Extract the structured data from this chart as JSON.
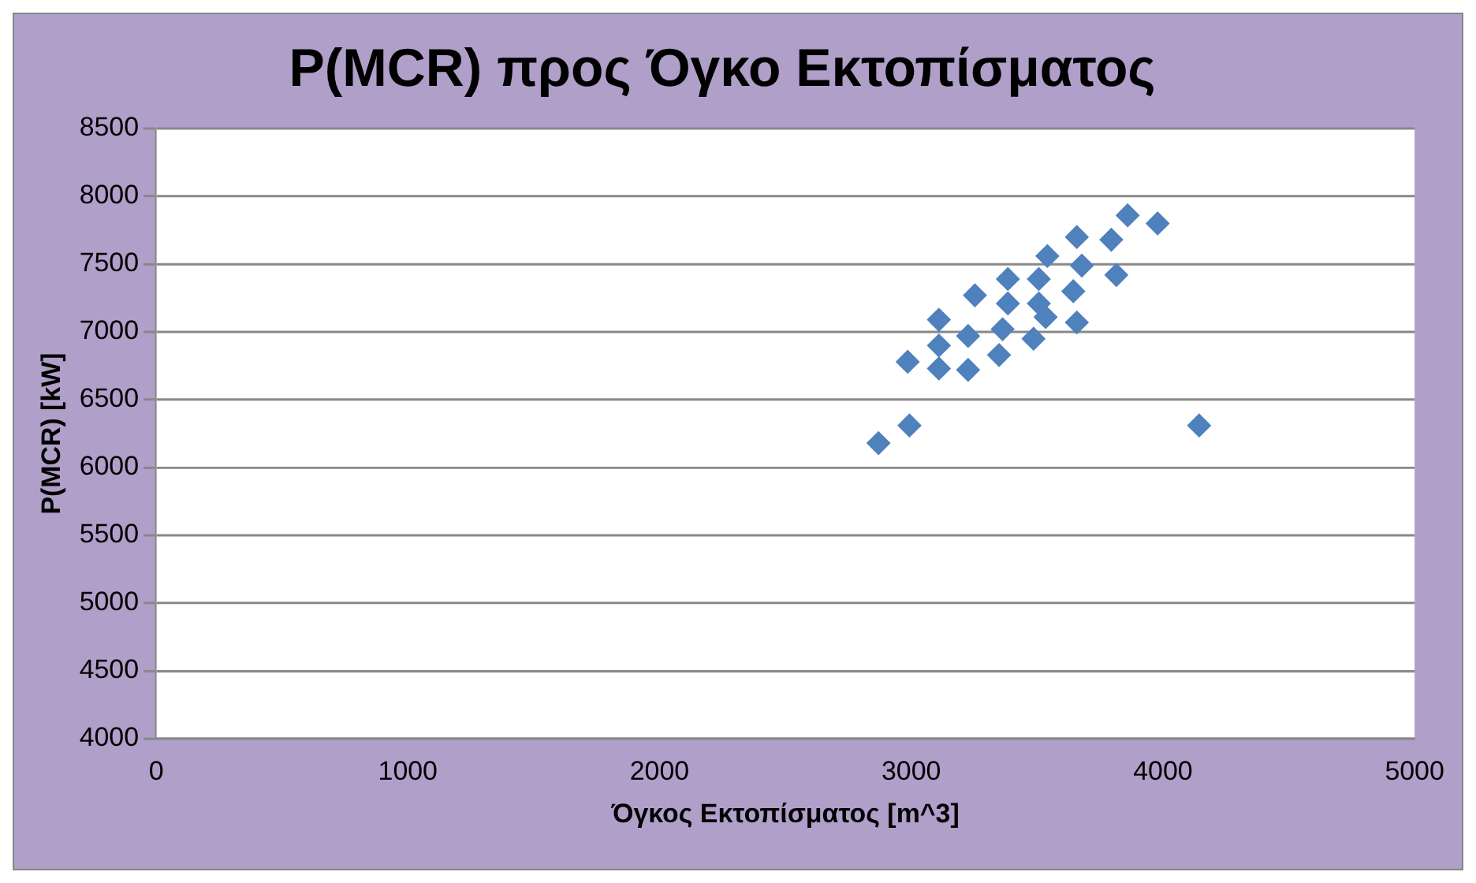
{
  "chart_data": {
    "type": "scatter",
    "title": "P(MCR) προς Όγκο Εκτοπίσματος",
    "xlabel": "Όγκος Εκτοπίσματος [m^3]",
    "ylabel": "P(MCR) [kW]",
    "x": [
      2870,
      2993,
      2986,
      3110,
      3110,
      3110,
      3226,
      3253,
      3226,
      3349,
      3384,
      3384,
      3363,
      3486,
      3507,
      3507,
      3541,
      3534,
      3658,
      3644,
      3658,
      3678,
      3795,
      3815,
      3860,
      3979,
      4144
    ],
    "series": [
      {
        "color": "#4f81bd",
        "values": [
          6180,
          6310,
          6780,
          7090,
          6730,
          6900,
          6720,
          7270,
          6970,
          6830,
          7390,
          7210,
          7020,
          6950,
          7390,
          7210,
          7560,
          7110,
          7070,
          7300,
          7700,
          7490,
          7680,
          7420,
          7860,
          7800,
          6310
        ]
      }
    ],
    "xlim": [
      0,
      5000
    ],
    "xticks": [
      0,
      1000,
      2000,
      3000,
      4000,
      5000
    ],
    "ylim": [
      4000,
      8500
    ],
    "yticks": [
      4000,
      4500,
      5000,
      5500,
      6000,
      6500,
      7000,
      7500,
      8000,
      8500
    ],
    "grid": "y",
    "legend": false,
    "marker": "diamond"
  }
}
